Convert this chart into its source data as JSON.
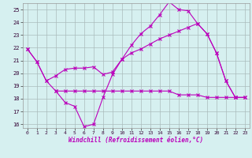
{
  "xlabel": "Windchill (Refroidissement éolien,°C)",
  "xlim": [
    -0.5,
    23.5
  ],
  "ylim": [
    15.7,
    25.5
  ],
  "yticks": [
    16,
    17,
    18,
    19,
    20,
    21,
    22,
    23,
    24,
    25
  ],
  "xticks": [
    0,
    1,
    2,
    3,
    4,
    5,
    6,
    7,
    8,
    9,
    10,
    11,
    12,
    13,
    14,
    15,
    16,
    17,
    18,
    19,
    20,
    21,
    22,
    23
  ],
  "bg_color": "#d6f0f0",
  "line_color": "#bb00bb",
  "grid_color": "#aabbbb",
  "line1_x": [
    0,
    1,
    2,
    3,
    4,
    5,
    6,
    7,
    8,
    9,
    10,
    11,
    12,
    13,
    14,
    15,
    16,
    17,
    18,
    19,
    20,
    21,
    22
  ],
  "line1_y": [
    21.9,
    20.9,
    19.4,
    18.6,
    17.7,
    17.4,
    15.8,
    16.0,
    18.1,
    19.9,
    21.1,
    22.2,
    23.1,
    23.7,
    24.6,
    25.6,
    25.0,
    24.9,
    23.9,
    23.1,
    21.6,
    19.4,
    18.1
  ],
  "line2_x": [
    0,
    1,
    2,
    3,
    4,
    5,
    6,
    7,
    8,
    9,
    10,
    11,
    12,
    13,
    14,
    15,
    16,
    17,
    18,
    19,
    20,
    21,
    22,
    23
  ],
  "line2_y": [
    21.9,
    20.9,
    19.4,
    19.8,
    20.3,
    20.4,
    20.4,
    20.5,
    19.9,
    20.1,
    21.1,
    21.6,
    21.9,
    22.3,
    22.7,
    23.0,
    23.3,
    23.6,
    23.9,
    23.1,
    21.6,
    19.4,
    18.1,
    18.1
  ],
  "line3_x": [
    3,
    4,
    5,
    6,
    7,
    8,
    9,
    10,
    11,
    12,
    13,
    14,
    15,
    16,
    17,
    18,
    19,
    20,
    21,
    22,
    23
  ],
  "line3_y": [
    18.6,
    18.6,
    18.6,
    18.6,
    18.6,
    18.6,
    18.6,
    18.6,
    18.6,
    18.6,
    18.6,
    18.6,
    18.6,
    18.3,
    18.3,
    18.3,
    18.1,
    18.1,
    18.1,
    18.1,
    18.1
  ]
}
